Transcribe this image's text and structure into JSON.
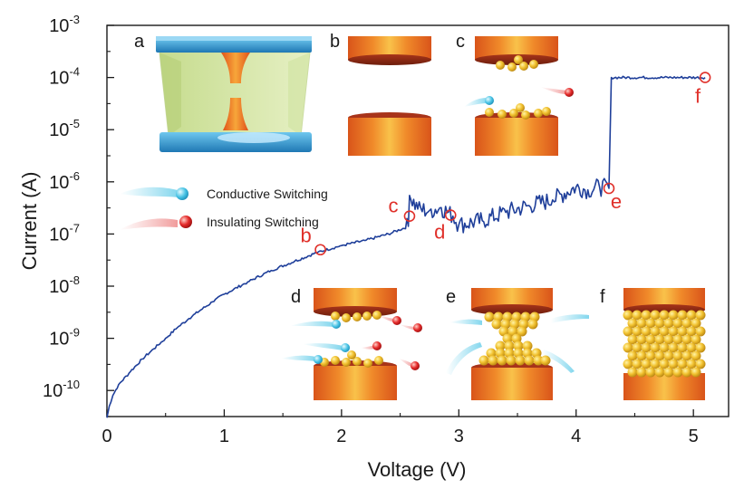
{
  "chart_data": {
    "type": "line",
    "xlabel": "Voltage (V)",
    "ylabel": "Current (A)",
    "xlim": [
      0,
      5.3
    ],
    "ylim": [
      -10.5,
      -3
    ],
    "yscale": "log",
    "x_ticks": [
      "0",
      "1",
      "2",
      "3",
      "4",
      "5"
    ],
    "y_ticks": [
      {
        "base": "10",
        "exp": "-3"
      },
      {
        "base": "10",
        "exp": "-4"
      },
      {
        "base": "10",
        "exp": "-5"
      },
      {
        "base": "10",
        "exp": "-6"
      },
      {
        "base": "10",
        "exp": "-7"
      },
      {
        "base": "10",
        "exp": "-8"
      },
      {
        "base": "10",
        "exp": "-9"
      },
      {
        "base": "10",
        "exp": "-10"
      }
    ],
    "series": [
      {
        "color": "#1f3f9a",
        "points": [
          [
            0.0,
            3e-11
          ],
          [
            0.02,
            5e-11
          ],
          [
            0.05,
            8e-11
          ],
          [
            0.1,
            1.3e-10
          ],
          [
            0.2,
            2.3e-10
          ],
          [
            0.3,
            4e-10
          ],
          [
            0.4,
            6.3e-10
          ],
          [
            0.5,
            1e-09
          ],
          [
            0.6,
            1.6e-09
          ],
          [
            0.7,
            2.4e-09
          ],
          [
            0.8,
            3.5e-09
          ],
          [
            0.9,
            5e-09
          ],
          [
            1.0,
            7e-09
          ],
          [
            1.2,
            1.2e-08
          ],
          [
            1.4,
            2e-08
          ],
          [
            1.6,
            3e-08
          ],
          [
            1.8,
            4.5e-08
          ],
          [
            2.0,
            6e-08
          ],
          [
            2.2,
            7.5e-08
          ],
          [
            2.4,
            1e-07
          ],
          [
            2.57,
            1.4e-07
          ],
          [
            2.58,
            5.5e-07
          ],
          [
            2.65,
            3e-07
          ],
          [
            2.75,
            2.8e-07
          ],
          [
            2.85,
            3.2e-07
          ],
          [
            2.95,
            2.2e-07
          ],
          [
            3.0,
            1.5e-07
          ],
          [
            3.2,
            1.8e-07
          ],
          [
            3.4,
            2.6e-07
          ],
          [
            3.6,
            3.5e-07
          ],
          [
            3.8,
            4.5e-07
          ],
          [
            3.9,
            6e-07
          ],
          [
            4.0,
            8e-07
          ],
          [
            4.1,
            7e-07
          ],
          [
            4.2,
            8e-07
          ],
          [
            4.28,
            7.5e-07
          ],
          [
            4.3,
            0.0001
          ],
          [
            5.1,
            0.0001
          ]
        ]
      }
    ],
    "markers": [
      {
        "label": "b",
        "x": 1.82,
        "y": 5e-08
      },
      {
        "label": "c",
        "x": 2.58,
        "y": 2.2e-07
      },
      {
        "label": "d",
        "x": 2.93,
        "y": 2.3e-07
      },
      {
        "label": "e",
        "x": 4.28,
        "y": 7.5e-07
      },
      {
        "label": "f",
        "x": 5.1,
        "y": 0.0001
      }
    ],
    "legend": [
      {
        "label": "Conductive Switching",
        "color": "#39b6d8"
      },
      {
        "label": "Insulating Switching",
        "color": "#d8262c"
      }
    ],
    "panels": [
      "a",
      "b",
      "c",
      "d",
      "e",
      "f"
    ]
  }
}
